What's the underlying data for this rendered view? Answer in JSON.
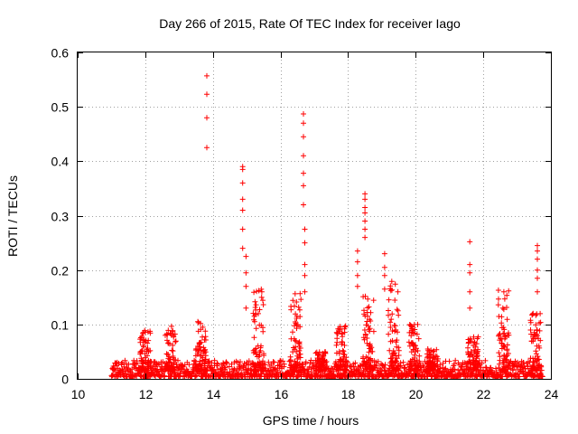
{
  "chart_data": {
    "type": "scatter",
    "title": "Day 266 of 2015, Rate Of TEC Index for receiver Iago",
    "xlabel": "GPS time / hours",
    "ylabel": "ROTI / TECUs",
    "xlim": [
      10,
      24
    ],
    "ylim": [
      0,
      0.6
    ],
    "xticks": [
      10,
      12,
      14,
      16,
      18,
      20,
      22,
      24
    ],
    "xtick_labels": [
      "10",
      "12",
      "14",
      "16",
      "18",
      "20",
      "22",
      "24"
    ],
    "yticks": [
      0,
      0.1,
      0.2,
      0.3,
      0.4,
      0.5,
      0.6
    ],
    "ytick_labels": [
      "0",
      "0.1",
      "0.2",
      "0.3",
      "0.4",
      "0.5",
      "0.6"
    ],
    "grid": true,
    "marker": "+",
    "color": "#ff0000",
    "series": [
      {
        "name": "ROTI",
        "baseline_range": [
          11.0,
          23.75
        ],
        "peaks": [
          {
            "x": 13.82,
            "values": [
              0.557,
              0.523,
              0.48,
              0.425
            ]
          },
          {
            "x": 14.88,
            "values": [
              0.39,
              0.385,
              0.36,
              0.33,
              0.31,
              0.275,
              0.24
            ]
          },
          {
            "x": 14.98,
            "values": [
              0.225,
              0.195,
              0.17,
              0.13
            ]
          },
          {
            "x": 16.68,
            "values": [
              0.487,
              0.47,
              0.445,
              0.41,
              0.378,
              0.355,
              0.32
            ]
          },
          {
            "x": 16.72,
            "values": [
              0.275,
              0.25,
              0.21,
              0.19,
              0.16
            ]
          },
          {
            "x": 18.5,
            "values": [
              0.34,
              0.33,
              0.315,
              0.305,
              0.29,
              0.275,
              0.26
            ]
          },
          {
            "x": 18.28,
            "values": [
              0.235,
              0.215,
              0.19,
              0.17
            ]
          },
          {
            "x": 19.08,
            "values": [
              0.23,
              0.205,
              0.19,
              0.165
            ]
          },
          {
            "x": 21.6,
            "values": [
              0.252,
              0.21,
              0.195,
              0.16,
              0.13
            ]
          },
          {
            "x": 23.6,
            "values": [
              0.245,
              0.235,
              0.22,
              0.2,
              0.185,
              0.16
            ]
          }
        ],
        "clusters": [
          {
            "x": 12.0,
            "max": 0.09
          },
          {
            "x": 12.75,
            "max": 0.1
          },
          {
            "x": 13.65,
            "max": 0.11
          },
          {
            "x": 15.35,
            "max": 0.165
          },
          {
            "x": 16.45,
            "max": 0.16
          },
          {
            "x": 17.2,
            "max": 0.05
          },
          {
            "x": 17.8,
            "max": 0.1
          },
          {
            "x": 18.6,
            "max": 0.16
          },
          {
            "x": 19.35,
            "max": 0.18
          },
          {
            "x": 19.95,
            "max": 0.1
          },
          {
            "x": 20.5,
            "max": 0.055
          },
          {
            "x": 21.7,
            "max": 0.08
          },
          {
            "x": 22.6,
            "max": 0.165
          },
          {
            "x": 23.55,
            "max": 0.12
          }
        ]
      }
    ]
  }
}
